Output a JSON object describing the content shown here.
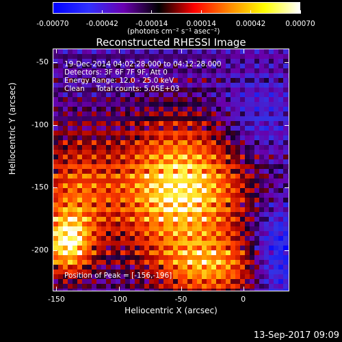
{
  "colorbar": {
    "colors": [
      "#0000ff",
      "#3030ff",
      "#6a00b0",
      "#000000",
      "#ff0000",
      "#ff8800",
      "#ffff00",
      "#ffffff"
    ],
    "ticks": [
      "-0.00070",
      "-0.00042",
      "-0.00014",
      "0.00014",
      "0.00042",
      "0.00070"
    ],
    "units": "(photons cm⁻² s⁻¹ asec⁻²)"
  },
  "title": "Reconstructed RHESSI Image",
  "info": {
    "time": "19-Dec-2014 04:02:28.000 to 04:12:28.000",
    "detectors": "Detectors: 3F 6F 7F 9F, Att 0",
    "energy": "Energy Range: 12.0 - 25.0 keV",
    "clean": "Clean     Total counts: 5.05E+03",
    "peak": "Position of Peak = [-156,-196]"
  },
  "axes": {
    "xlabel": "Heliocentric X (arcsec)",
    "ylabel": "Heliocentric Y (arcsec)",
    "xticks": [
      "-150",
      "-100",
      "-50",
      "0"
    ],
    "yticks": [
      "-50",
      "-100",
      "-150",
      "-200"
    ],
    "xlim": [
      -153,
      37
    ],
    "ylim": [
      -233,
      -39
    ]
  },
  "datestamp": "13-Sep-2017 09:09"
}
